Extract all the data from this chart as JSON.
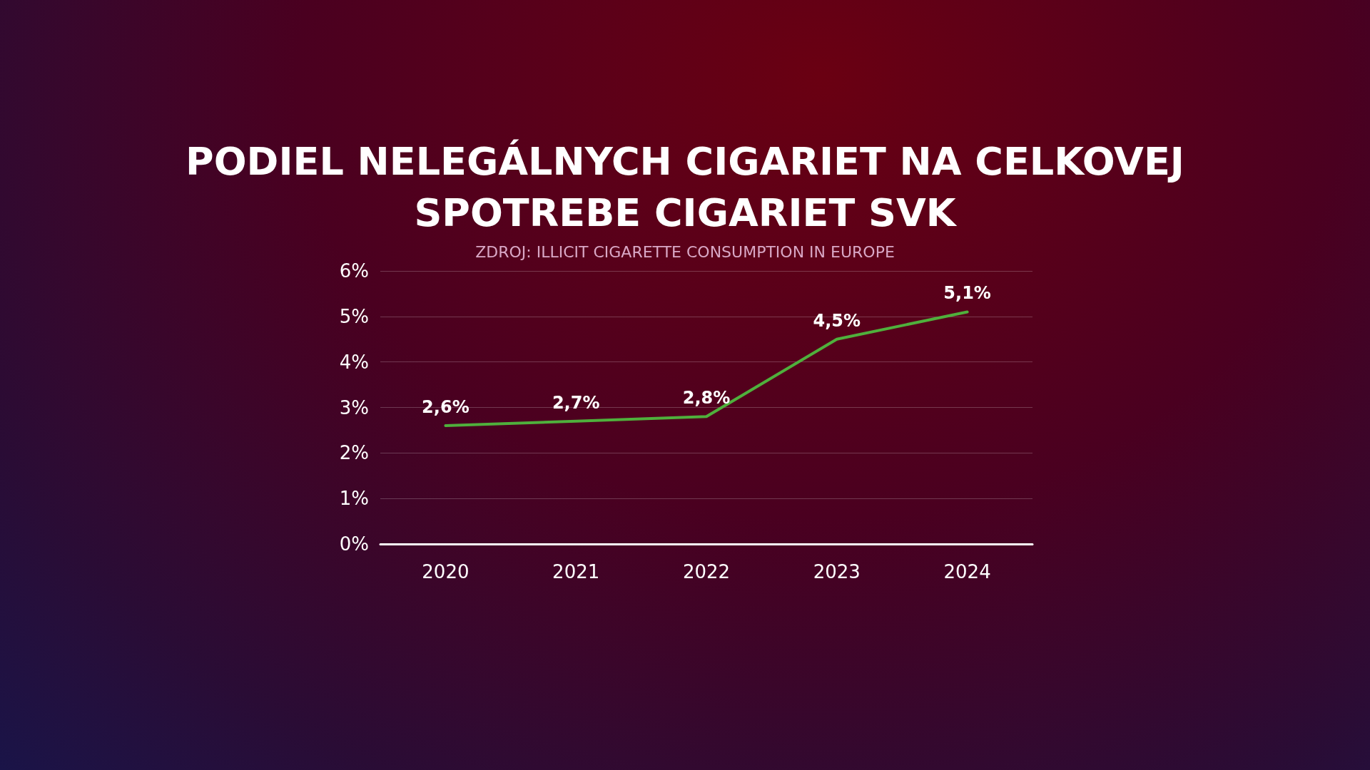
{
  "chart_data": {
    "type": "line",
    "title": "PODIEL NELEGÁLNYCH CIGARIET NA CELKOVEJ\nSPOTREBE CIGARIET SVK",
    "subtitle": "ZDROJ: ILLICIT CIGARETTE CONSUMPTION IN EUROPE",
    "categories": [
      "2020",
      "2021",
      "2022",
      "2023",
      "2024"
    ],
    "series": [
      {
        "color": "#4fb03c",
        "values": [
          2.6,
          2.7,
          2.8,
          4.5,
          5.1
        ],
        "value_labels": [
          "2,6%",
          "2,7%",
          "2,8%",
          "4,5%",
          "5,1%"
        ]
      }
    ],
    "ylim": [
      0,
      6
    ],
    "yticks": [
      {
        "value": 0,
        "label": "0%"
      },
      {
        "value": 1,
        "label": "1%"
      },
      {
        "value": 2,
        "label": "2%"
      },
      {
        "value": 3,
        "label": "3%"
      },
      {
        "value": 4,
        "label": "4%"
      },
      {
        "value": 5,
        "label": "5%"
      },
      {
        "value": 6,
        "label": "6%"
      }
    ],
    "grid": "y",
    "marker": "none",
    "line_style": "solid"
  }
}
